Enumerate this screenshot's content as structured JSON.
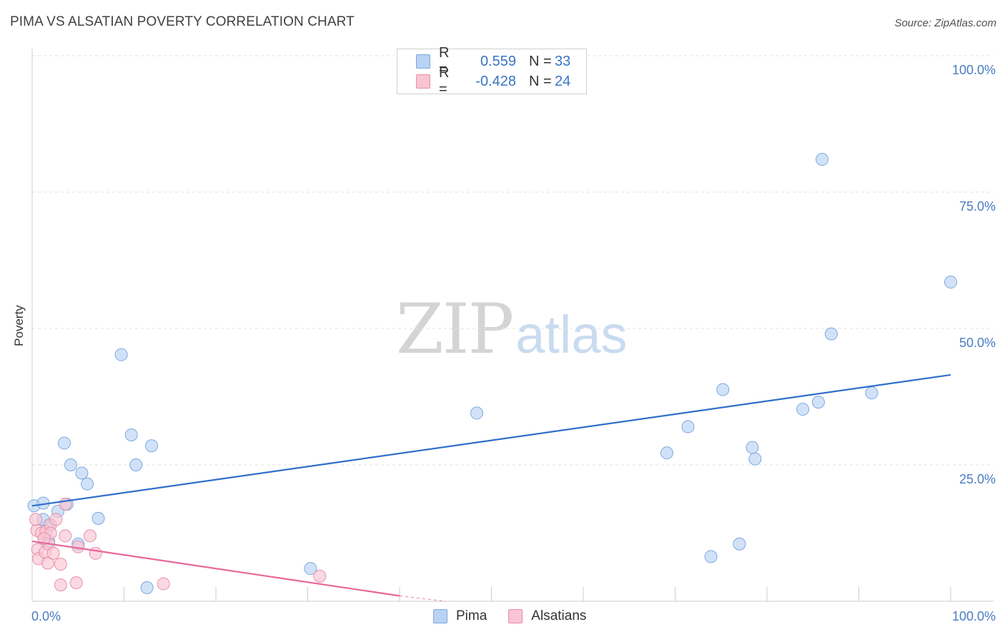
{
  "title": "PIMA VS ALSATIAN POVERTY CORRELATION CHART",
  "source": "Source: ZipAtlas.com",
  "watermark": {
    "zip": "ZIP",
    "atlas": "atlas"
  },
  "legend_stats": [
    {
      "r_label": "R =",
      "r_value": "0.559",
      "n_label": "N =",
      "n_value": "33",
      "color": "#b9d3f5",
      "border": "#7fa8dd"
    },
    {
      "r_label": "R =",
      "r_value": "-0.428",
      "n_label": "N =",
      "n_value": "24",
      "color": "#f9c4d3",
      "border": "#e590ab"
    }
  ],
  "chart_data": {
    "type": "scatter",
    "xlabel": "",
    "ylabel": "Poverty",
    "xlim": [
      0,
      100
    ],
    "ylim": [
      0,
      100
    ],
    "x_tick_labels": [
      "0.0%",
      "100.0%"
    ],
    "y_ticks": [
      25,
      50,
      75,
      100
    ],
    "y_tick_labels": [
      "25.0%",
      "50.0%",
      "75.0%",
      "100.0%"
    ],
    "grid": true,
    "legend_position": "bottom-center",
    "series": [
      {
        "name": "Pima",
        "color": "#b9d3f5",
        "stroke": "#7fa8dd",
        "line_color": "#2f6fcc",
        "trend": [
          [
            0,
            17.5
          ],
          [
            100,
            41.5
          ]
        ],
        "points": [
          [
            0.2,
            17.5
          ],
          [
            1.2,
            18
          ],
          [
            2.8,
            16.5
          ],
          [
            1.8,
            14
          ],
          [
            1.2,
            15
          ],
          [
            1.8,
            11
          ],
          [
            3.5,
            29
          ],
          [
            4.2,
            25
          ],
          [
            5.4,
            23.5
          ],
          [
            6,
            21.5
          ],
          [
            3.8,
            17.8
          ],
          [
            7.2,
            15.2
          ],
          [
            5,
            10.5
          ],
          [
            9.7,
            45.2
          ],
          [
            10.8,
            30.5
          ],
          [
            11.3,
            25
          ],
          [
            13,
            28.5
          ],
          [
            12.5,
            2.5
          ],
          [
            30.3,
            6
          ],
          [
            48.4,
            34.5
          ],
          [
            69.1,
            27.2
          ],
          [
            71.4,
            32
          ],
          [
            75.2,
            38.8
          ],
          [
            78.4,
            28.2
          ],
          [
            78.7,
            26.1
          ],
          [
            83.9,
            35.2
          ],
          [
            85.6,
            36.5
          ],
          [
            86,
            81
          ],
          [
            87,
            49
          ],
          [
            91.4,
            38.2
          ],
          [
            100,
            58.5
          ],
          [
            73.9,
            8.2
          ],
          [
            77,
            10.5
          ]
        ]
      },
      {
        "name": "Alsatians",
        "color": "#f9c4d3",
        "stroke": "#e590ab",
        "line_color": "#e8679a",
        "trend": [
          [
            0,
            11
          ],
          [
            40,
            1
          ]
        ],
        "trend_dashed": [
          [
            40,
            1
          ],
          [
            45,
            0
          ]
        ],
        "points": [
          [
            0.5,
            13
          ],
          [
            0.6,
            9.5
          ],
          [
            0.7,
            7.8
          ],
          [
            1,
            12.5
          ],
          [
            1.4,
            9
          ],
          [
            1.5,
            12.8
          ],
          [
            1.7,
            7
          ],
          [
            1.8,
            10.5
          ],
          [
            2,
            14
          ],
          [
            2,
            12.5
          ],
          [
            2.3,
            8.8
          ],
          [
            2.6,
            15
          ],
          [
            3.1,
            6.8
          ],
          [
            3.1,
            3
          ],
          [
            3.6,
            12
          ],
          [
            3.6,
            17.8
          ],
          [
            6.3,
            12
          ],
          [
            6.9,
            8.8
          ],
          [
            4.8,
            3.4
          ],
          [
            14.3,
            3.2
          ],
          [
            31.3,
            4.6
          ],
          [
            0.4,
            15
          ],
          [
            1.3,
            11.5
          ],
          [
            5.0,
            10.0
          ]
        ]
      }
    ]
  }
}
